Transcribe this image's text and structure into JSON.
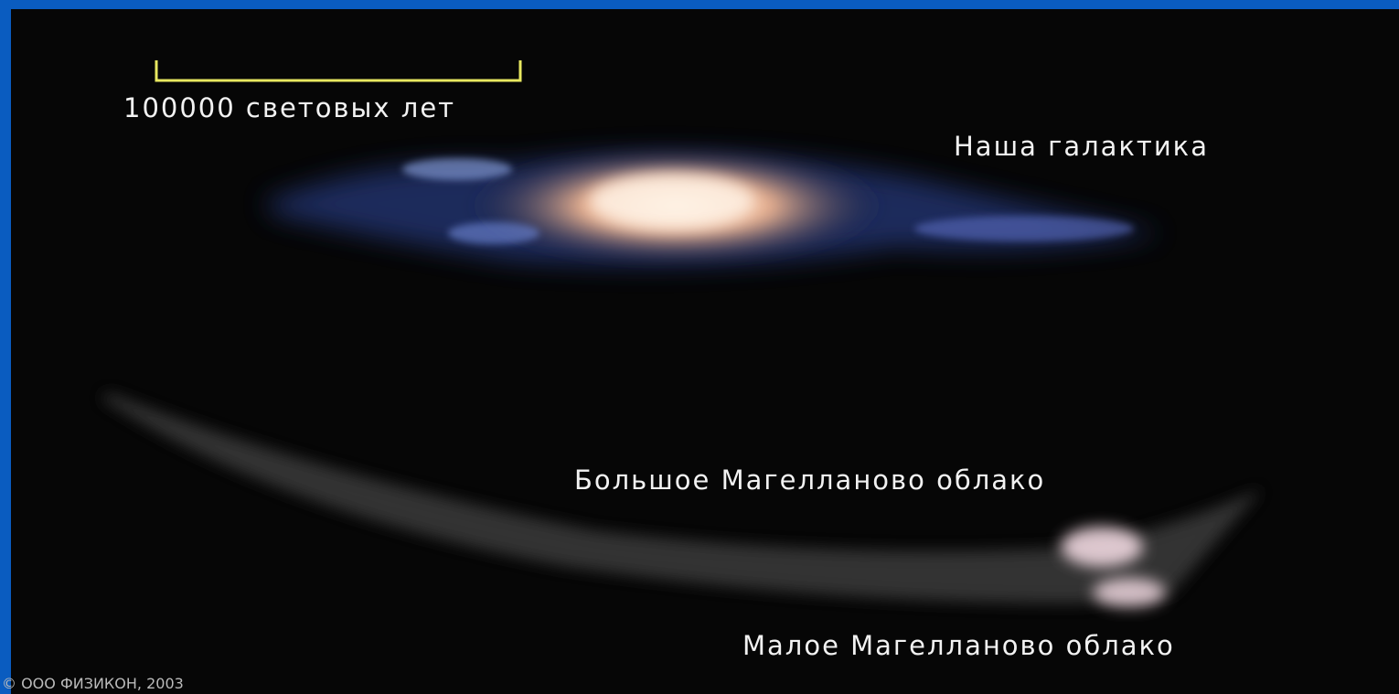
{
  "scale_bar": {
    "label": "100000 световых лет"
  },
  "labels": {
    "galaxy": "Наша галактика",
    "lmc": "Большое Магелланово облако",
    "smc": "Малое Магелланово облако"
  },
  "copyright": "© ООО ФИЗИКОН, 2003"
}
